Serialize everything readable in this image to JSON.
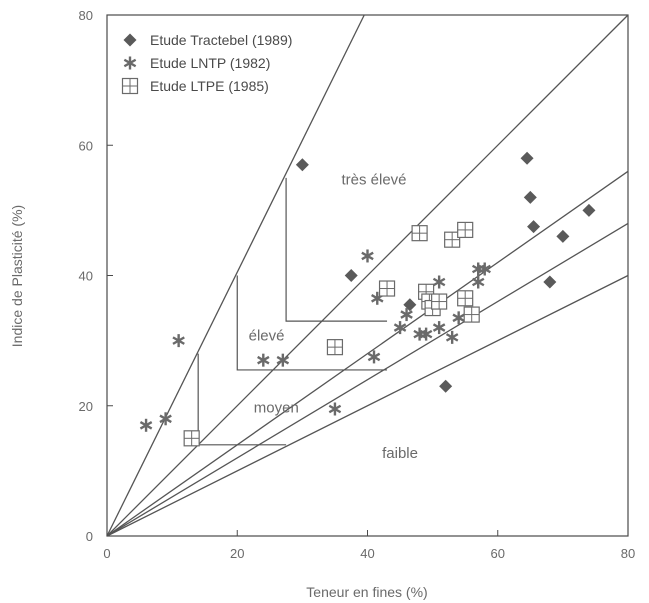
{
  "chart_data": {
    "type": "scatter",
    "title": "",
    "xlabel": "Teneur en fines (%)",
    "ylabel": "Indice de Plasticité (%)",
    "xlim": [
      0,
      80
    ],
    "ylim": [
      0,
      80
    ],
    "xticks": [
      0,
      20,
      40,
      60,
      80
    ],
    "yticks": [
      0,
      20,
      40,
      60,
      80
    ],
    "grid": false,
    "legend_position": "top-left",
    "series": [
      {
        "name": "Etude Tractebel (1989)",
        "marker": "diamond",
        "color": "#5a5a5a",
        "points": [
          [
            30,
            57
          ],
          [
            37.5,
            40
          ],
          [
            46.5,
            35.5
          ],
          [
            52,
            23
          ],
          [
            64.5,
            58
          ],
          [
            65,
            52
          ],
          [
            65.5,
            47.5
          ],
          [
            68,
            39
          ],
          [
            70,
            46
          ],
          [
            74,
            50
          ]
        ]
      },
      {
        "name": "Etude LNTP (1982)",
        "marker": "star",
        "color": "#6a6a6a",
        "points": [
          [
            6,
            17
          ],
          [
            9,
            18
          ],
          [
            11,
            30
          ],
          [
            24,
            27
          ],
          [
            27,
            27
          ],
          [
            35,
            19.5
          ],
          [
            40,
            43
          ],
          [
            41,
            27.5
          ],
          [
            41.5,
            36.5
          ],
          [
            45,
            32
          ],
          [
            46,
            34
          ],
          [
            48,
            31
          ],
          [
            49,
            31
          ],
          [
            50,
            35
          ],
          [
            51,
            39
          ],
          [
            51,
            32
          ],
          [
            53,
            30.5
          ],
          [
            54,
            33.5
          ],
          [
            57,
            39
          ],
          [
            57,
            41
          ],
          [
            58,
            41
          ]
        ]
      },
      {
        "name": "Etude LTPE (1985)",
        "marker": "square-cross",
        "color": "#6a6a6a",
        "points": [
          [
            13,
            15
          ],
          [
            35,
            29
          ],
          [
            43,
            38
          ],
          [
            48,
            46.5
          ],
          [
            49,
            37.5
          ],
          [
            49.5,
            36
          ],
          [
            50,
            35
          ],
          [
            51,
            36
          ],
          [
            53,
            45.5
          ],
          [
            55,
            47
          ],
          [
            55,
            36.5
          ],
          [
            56,
            34
          ]
        ]
      }
    ],
    "reference_lines": [
      {
        "id": "line-1",
        "from": [
          0,
          0
        ],
        "to": [
          39.5,
          80
        ]
      },
      {
        "id": "line-2",
        "from": [
          0,
          0
        ],
        "to": [
          80,
          80
        ]
      },
      {
        "id": "line-3",
        "from": [
          0,
          0
        ],
        "to": [
          80,
          56
        ]
      },
      {
        "id": "line-4",
        "from": [
          0,
          0
        ],
        "to": [
          80,
          48
        ]
      },
      {
        "id": "line-5",
        "from": [
          0,
          0
        ],
        "to": [
          80,
          40
        ]
      }
    ],
    "zone_boundaries": [
      {
        "id": "moyen",
        "points": [
          [
            14,
            28
          ],
          [
            14,
            14
          ],
          [
            27.5,
            14
          ]
        ]
      },
      {
        "id": "eleve",
        "points": [
          [
            20,
            40
          ],
          [
            20,
            25.5
          ],
          [
            43,
            25.5
          ]
        ]
      },
      {
        "id": "tres-eleve",
        "points": [
          [
            27.5,
            55
          ],
          [
            27.5,
            33
          ],
          [
            43,
            33
          ]
        ]
      }
    ],
    "region_labels": [
      {
        "text": "très élevé",
        "x": 41,
        "y": 54
      },
      {
        "text": "élevé",
        "x": 24.5,
        "y": 30
      },
      {
        "text": "moyen",
        "x": 26,
        "y": 19
      },
      {
        "text": "faible",
        "x": 45,
        "y": 12
      }
    ]
  }
}
